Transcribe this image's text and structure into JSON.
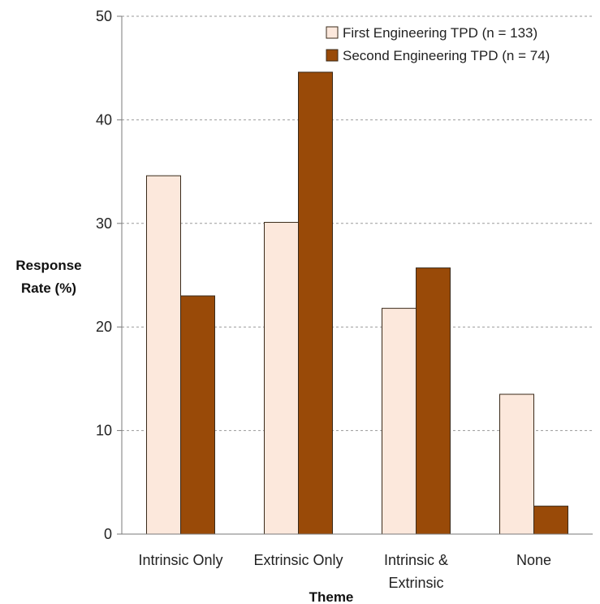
{
  "chart_data": {
    "type": "bar",
    "title": "",
    "xlabel": "Theme",
    "ylabel_lines": [
      "Response",
      "Rate (%)"
    ],
    "categories": [
      [
        "Intrinsic Only"
      ],
      [
        "Extrinsic Only"
      ],
      [
        "Intrinsic &",
        "Extrinsic"
      ],
      [
        "None"
      ]
    ],
    "series": [
      {
        "name": "First Engineering TPD (n = 133)",
        "color": "#fce8dc",
        "values": [
          34.6,
          30.1,
          21.8,
          13.5
        ]
      },
      {
        "name": "Second Engineering TPD (n = 74)",
        "color": "#994a08",
        "values": [
          23.0,
          44.6,
          25.7,
          2.7
        ]
      }
    ],
    "ylim": [
      0,
      50
    ],
    "yticks": [
      0,
      10,
      20,
      30,
      40,
      50
    ],
    "grid": true,
    "legend_position": "top-right"
  }
}
